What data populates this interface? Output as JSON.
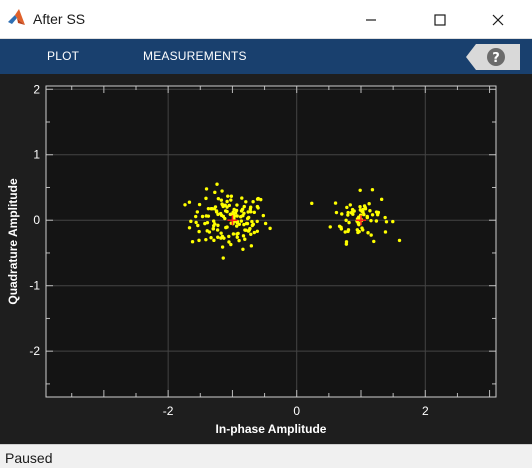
{
  "window": {
    "title": "After SS",
    "app_icon": "matlab-logo-icon",
    "controls": [
      "minimize-icon",
      "maximize-icon",
      "close-icon"
    ]
  },
  "toolstrip": {
    "tabs": [
      {
        "label": "PLOT"
      },
      {
        "label": "MEASUREMENTS"
      }
    ],
    "help_icon": "help-question-icon"
  },
  "status": {
    "text": "Paused"
  },
  "colors": {
    "toolstrip": "#19406e",
    "plot_background": "#141414",
    "points": "#ffff00",
    "reference": "#ff2020",
    "axes_text": "#ffffff"
  },
  "chart_data": {
    "type": "scatter",
    "title": "",
    "xlabel": "In-phase Amplitude",
    "ylabel": "Quadrature Amplitude",
    "xlim": [
      -3.9,
      3.1
    ],
    "ylim": [
      -2.7,
      2.05
    ],
    "xticks": [
      -2,
      0,
      2
    ],
    "yticks": [
      -2,
      -1,
      0,
      1,
      2
    ],
    "grid": true,
    "reference_points": [
      {
        "x": -1,
        "y": 0
      },
      {
        "x": 1,
        "y": 0
      }
    ],
    "clusters": [
      {
        "center": [
          -1.05,
          0.0
        ],
        "spread": [
          0.3,
          0.22
        ],
        "count": 140
      },
      {
        "center": [
          1.0,
          0.05
        ],
        "spread": [
          0.22,
          0.18
        ],
        "count": 70
      }
    ]
  }
}
